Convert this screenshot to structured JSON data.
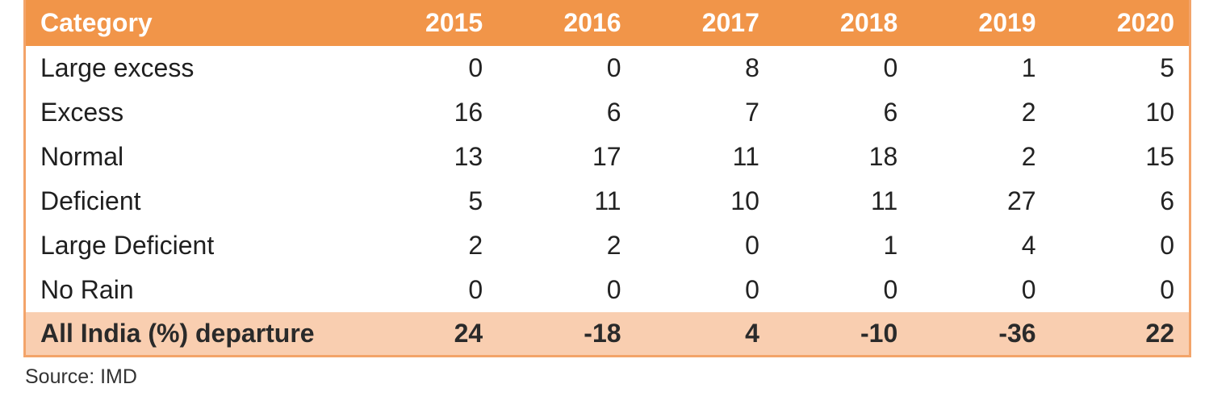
{
  "table": {
    "headers": [
      "Category",
      "2015",
      "2016",
      "2017",
      "2018",
      "2019",
      "2020"
    ],
    "rows": [
      {
        "category": "Large excess",
        "values": [
          "0",
          "0",
          "8",
          "0",
          "1",
          "5"
        ]
      },
      {
        "category": "Excess",
        "values": [
          "16",
          "6",
          "7",
          "6",
          "2",
          "10"
        ]
      },
      {
        "category": "Normal",
        "values": [
          "13",
          "17",
          "11",
          "18",
          "2",
          "15"
        ]
      },
      {
        "category": "Deficient",
        "values": [
          "5",
          "11",
          "10",
          "11",
          "27",
          "6"
        ]
      },
      {
        "category": "Large Deficient",
        "values": [
          "2",
          "2",
          "0",
          "1",
          "4",
          "0"
        ]
      },
      {
        "category": "No Rain",
        "values": [
          "0",
          "0",
          "0",
          "0",
          "0",
          "0"
        ]
      }
    ],
    "total": {
      "category": "All India (%) departure",
      "values": [
        "24",
        "-18",
        "4",
        "-10",
        "-36",
        "22"
      ]
    }
  },
  "source": "Source: IMD",
  "colors": {
    "header_bg": "#f19549",
    "total_bg": "#f9ceb0",
    "border": "#f3a46a"
  }
}
